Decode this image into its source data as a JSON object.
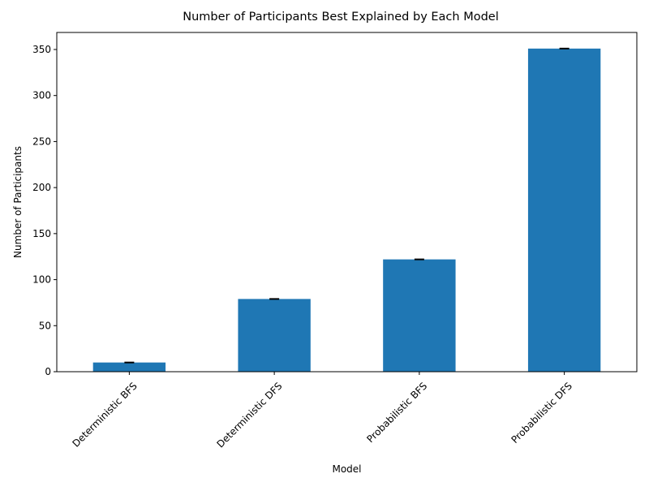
{
  "chart_data": {
    "type": "bar",
    "title": "Number of Participants Best Explained by Each Model",
    "xlabel": "Model",
    "ylabel": "Number of Participants",
    "categories": [
      "Deterministic BFS",
      "Deterministic DFS",
      "Probabilistic BFS",
      "Probabilistic DFS"
    ],
    "values": [
      10,
      79,
      122,
      351
    ],
    "error": [
      0,
      0,
      0,
      0
    ],
    "ylim": [
      0,
      368.5
    ],
    "yticks": [
      0,
      50,
      100,
      150,
      200,
      250,
      300,
      350
    ],
    "xtick_rotation_deg": 45,
    "grid": false,
    "legend": null,
    "colors": {
      "bar": "#1f77b4",
      "errorbar": "#000000",
      "axis": "#000000"
    }
  }
}
